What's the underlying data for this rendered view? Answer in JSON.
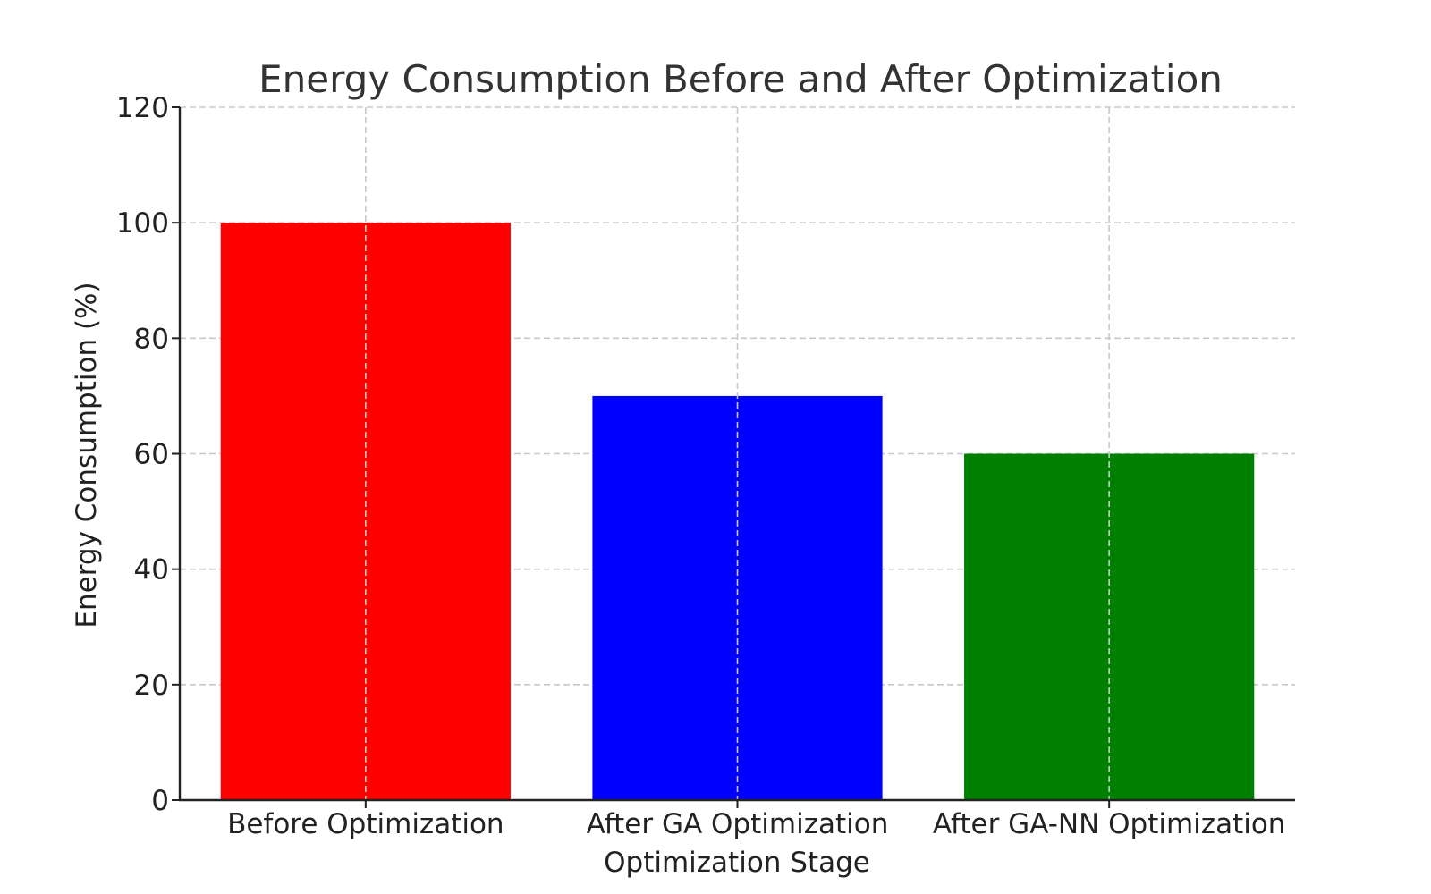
{
  "chart_data": {
    "type": "bar",
    "title": "Energy Consumption Before and After Optimization",
    "xlabel": "Optimization Stage",
    "ylabel": "Energy Consumption (%)",
    "categories": [
      "Before Optimization",
      "After GA Optimization",
      "After GA-NN Optimization"
    ],
    "values": [
      100,
      70,
      60
    ],
    "colors": [
      "#ff0000",
      "#0000ff",
      "#008000"
    ],
    "ylim": [
      0,
      120
    ],
    "yticks": [
      0,
      20,
      40,
      60,
      80,
      100,
      120
    ],
    "grid": true
  }
}
